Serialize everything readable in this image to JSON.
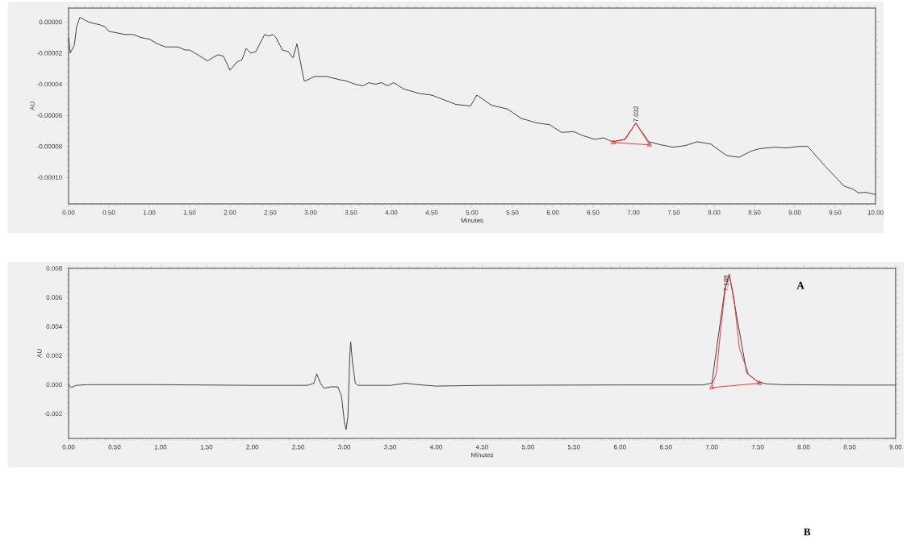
{
  "chart_data": [
    {
      "type": "line",
      "xlabel": "Minutes",
      "ylabel": "AU",
      "xlim": [
        0,
        10
      ],
      "ylim": [
        -0.000117,
        9e-06
      ],
      "xticks": [
        {
          "value": 0,
          "label": "0.00"
        },
        {
          "value": 0.5,
          "label": "0.50"
        },
        {
          "value": 1,
          "label": "1.00"
        },
        {
          "value": 1.5,
          "label": "1.50"
        },
        {
          "value": 2,
          "label": "2.00"
        },
        {
          "value": 2.5,
          "label": "2.50"
        },
        {
          "value": 3,
          "label": "3.00"
        },
        {
          "value": 3.5,
          "label": "3.50"
        },
        {
          "value": 4,
          "label": "4.00"
        },
        {
          "value": 4.5,
          "label": "4.50"
        },
        {
          "value": 5,
          "label": "5.00"
        },
        {
          "value": 5.5,
          "label": "5.50"
        },
        {
          "value": 6,
          "label": "6.00"
        },
        {
          "value": 6.5,
          "label": "6.50"
        },
        {
          "value": 7,
          "label": "7.00"
        },
        {
          "value": 7.5,
          "label": "7.50"
        },
        {
          "value": 8,
          "label": "8.00"
        },
        {
          "value": 8.5,
          "label": "8.50"
        },
        {
          "value": 9,
          "label": "9.00"
        },
        {
          "value": 9.5,
          "label": "9.50"
        },
        {
          "value": 10,
          "label": "10.00"
        }
      ],
      "yticks": [
        {
          "value": -0.0001,
          "label": "-0.00010"
        },
        {
          "value": -8e-05,
          "label": "-0.00008"
        },
        {
          "value": -6e-05,
          "label": "-0.00006"
        },
        {
          "value": -4e-05,
          "label": "-0.00004"
        },
        {
          "value": -2e-05,
          "label": "-0.00002"
        },
        {
          "value": 0,
          "label": "0.00000"
        }
      ],
      "series": [
        {
          "color": "#303030",
          "x": [
            0,
            0.02,
            0.07,
            0.1,
            0.14,
            0.25,
            0.4,
            0.45,
            0.5,
            0.6,
            0.7,
            0.8,
            0.9,
            1.0,
            1.1,
            1.2,
            1.35,
            1.45,
            1.5,
            1.6,
            1.72,
            1.85,
            1.92,
            2.0,
            2.08,
            2.15,
            2.2,
            2.26,
            2.32,
            2.43,
            2.48,
            2.53,
            2.57,
            2.65,
            2.72,
            2.78,
            2.83,
            2.87,
            2.92,
            2.97,
            3.05,
            3.2,
            3.35,
            3.45,
            3.55,
            3.65,
            3.72,
            3.8,
            3.88,
            3.95,
            4.03,
            4.15,
            4.35,
            4.5,
            4.65,
            4.8,
            4.98,
            5.06,
            5.24,
            5.44,
            5.61,
            5.81,
            5.96,
            6.11,
            6.26,
            6.37,
            6.52,
            6.63,
            6.74,
            6.89,
            7.03,
            7.19,
            7.34,
            7.49,
            7.64,
            7.79,
            7.96,
            8.05,
            8.16,
            8.31,
            8.46,
            8.56,
            8.75,
            8.9,
            9.05,
            9.16,
            9.38,
            9.61,
            9.72,
            9.79,
            9.87,
            10.0
          ],
          "values": [
            -1e-05,
            -2e-05,
            -1.5e-05,
            -3e-06,
            3e-06,
            0.0,
            -2e-06,
            -3e-06,
            -6e-06,
            -7e-06,
            -8e-06,
            -8e-06,
            -1e-05,
            -1.1e-05,
            -1.4e-05,
            -1.6e-05,
            -1.6e-05,
            -1.8e-05,
            -1.8e-05,
            -2.1e-05,
            -2.5e-05,
            -2.1e-05,
            -2.2e-05,
            -3.1e-05,
            -2.6e-05,
            -2.4e-05,
            -1.7e-05,
            -2e-05,
            -1.9e-05,
            -8e-06,
            -9e-06,
            -8e-06,
            -1e-05,
            -1.8e-05,
            -1.9e-05,
            -2.3e-05,
            -1.4e-05,
            -2.5e-05,
            -3.8e-05,
            -3.7e-05,
            -3.5e-05,
            -3.5e-05,
            -3.7e-05,
            -3.8e-05,
            -4e-05,
            -4.1e-05,
            -3.9e-05,
            -4e-05,
            -3.9e-05,
            -4.1e-05,
            -3.9e-05,
            -4.3e-05,
            -4.6e-05,
            -4.7e-05,
            -5e-05,
            -5.3e-05,
            -5.4e-05,
            -4.7e-05,
            -5.35e-05,
            -5.6e-05,
            -6.2e-05,
            -6.5e-05,
            -6.6e-05,
            -7.1e-05,
            -7.05e-05,
            -7.3e-05,
            -7.55e-05,
            -7.45e-05,
            -7.7e-05,
            -7.55e-05,
            -6.5e-05,
            -7.7e-05,
            -7.9e-05,
            -8.05e-05,
            -7.95e-05,
            -7.7e-05,
            -7.85e-05,
            -8.2e-05,
            -8.6e-05,
            -8.7e-05,
            -8.3e-05,
            -8.15e-05,
            -8.05e-05,
            -8.1e-05,
            -8e-05,
            -8e-05,
            -9.3e-05,
            -0.0001055,
            -0.0001075,
            -0.00011,
            -0.0001095,
            -0.000111
          ]
        },
        {
          "color": "#ff2020",
          "x": [
            6.75,
            6.9,
            7.03,
            7.2
          ],
          "values": [
            -7.7e-05,
            -7.55e-05,
            -6.5e-05,
            -7.9e-05
          ]
        },
        {
          "color": "#ff2020",
          "marker": "triangle",
          "x": [
            6.75,
            7.2
          ],
          "values": [
            -7.75e-05,
            -7.9e-05
          ]
        }
      ],
      "annotations": [
        {
          "text": "7.032",
          "x": 7.032,
          "y": -6.5e-05
        }
      ]
    },
    {
      "type": "line",
      "xlabel": "Minutes",
      "ylabel": "AU",
      "xlim": [
        0,
        9
      ],
      "ylim": [
        -0.0037,
        0.008
      ],
      "xticks": [
        {
          "value": 0,
          "label": "0.00"
        },
        {
          "value": 0.5,
          "label": "0.50"
        },
        {
          "value": 1,
          "label": "1.00"
        },
        {
          "value": 1.5,
          "label": "1.50"
        },
        {
          "value": 2,
          "label": "2.00"
        },
        {
          "value": 2.5,
          "label": "2.50"
        },
        {
          "value": 3,
          "label": "3.00"
        },
        {
          "value": 3.5,
          "label": "3.50"
        },
        {
          "value": 4,
          "label": "4.00"
        },
        {
          "value": 4.5,
          "label": "4.50"
        },
        {
          "value": 5,
          "label": "5.00"
        },
        {
          "value": 5.5,
          "label": "5.50"
        },
        {
          "value": 6,
          "label": "6.00"
        },
        {
          "value": 6.5,
          "label": "6.50"
        },
        {
          "value": 7,
          "label": "7.00"
        },
        {
          "value": 7.5,
          "label": "7.50"
        },
        {
          "value": 8,
          "label": "8.00"
        },
        {
          "value": 8.5,
          "label": "8.50"
        },
        {
          "value": 9,
          "label": "9.00"
        }
      ],
      "yticks": [
        {
          "value": -0.002,
          "label": "-0.002"
        },
        {
          "value": 0,
          "label": "0.000"
        },
        0.002,
        0.004,
        0.006,
        0.008
      ],
      "series": [
        {
          "color": "#303030",
          "x": [
            0,
            0.03,
            0.08,
            0.2,
            1.0,
            2.0,
            2.6,
            2.67,
            2.7,
            2.74,
            2.78,
            2.85,
            2.93,
            2.97,
            3.0,
            3.02,
            3.04,
            3.06,
            3.07,
            3.09,
            3.12,
            3.15,
            3.5,
            3.67,
            3.8,
            4.0,
            4.5,
            6.0,
            6.9,
            7.0,
            7.08,
            7.14,
            7.19,
            7.24,
            7.3,
            7.38,
            7.5,
            7.6,
            7.75,
            8.5,
            9.0
          ],
          "values": [
            0,
            -0.0002,
            -5e-05,
            0,
            0,
            -5e-05,
            -5e-05,
            0.0001,
            0.00075,
            0.0001,
            -0.00025,
            -0.00015,
            -0.00015,
            -0.0008,
            -0.0025,
            -0.0031,
            -0.0022,
            0.002,
            0.00295,
            0.0015,
            0.0001,
            -5e-05,
            -5e-05,
            0.0001,
            0,
            -0.0001,
            -5e-05,
            -2e-05,
            -2e-05,
            0.0001,
            null,
            0.0065,
            0.0076,
            null,
            null,
            0.0008,
            0.0002,
            5e-05,
            0,
            -3e-05,
            -3e-05
          ]
        },
        {
          "color": "#ff2020",
          "x": [
            7.0,
            7.05,
            7.1,
            7.15,
            7.19,
            7.24,
            7.3,
            7.4,
            7.52
          ],
          "values": [
            -0.0001,
            0.0008,
            0.004,
            0.0068,
            0.0075,
            0.006,
            0.0025,
            0.0007,
            0.0001
          ]
        },
        {
          "color": "#ff2020",
          "marker": "triangle",
          "x": [
            7.0,
            7.52
          ],
          "values": [
            -0.0002,
            0.0001
          ]
        }
      ],
      "annotations": [
        {
          "text": "7.188",
          "x": 7.19,
          "y": 0.0076
        },
        "A",
        "B"
      ]
    }
  ]
}
